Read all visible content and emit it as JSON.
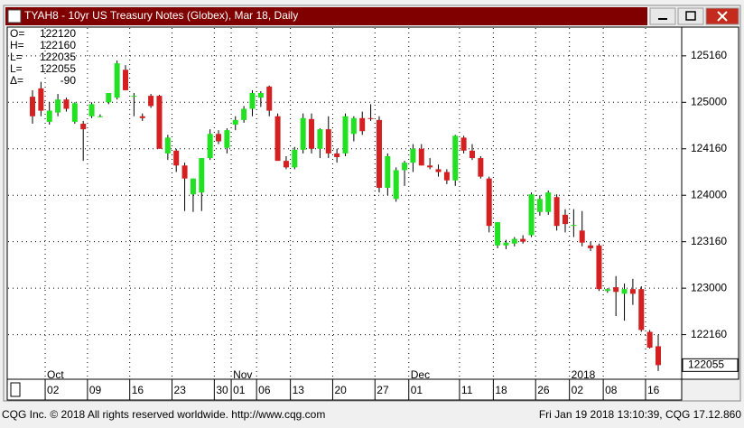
{
  "chart_data": {
    "type": "candlestick",
    "title": "TYAH8 - 10yr US Treasury Notes (Globex), Mar 18, Daily",
    "readout": [
      {
        "label": "O=",
        "text": "122120"
      },
      {
        "label": "H=",
        "text": "122160"
      },
      {
        "label": "L=",
        "text": "122035"
      },
      {
        "label": "L=",
        "text": "122055"
      },
      {
        "label": "Δ=",
        "text": "-90"
      }
    ],
    "categories": [
      null,
      null,
      "02",
      null,
      null,
      null,
      null,
      "09",
      null,
      null,
      null,
      null,
      "16",
      null,
      null,
      null,
      null,
      "23",
      null,
      null,
      null,
      null,
      "30",
      null,
      "01",
      null,
      null,
      "06",
      null,
      null,
      null,
      "13",
      null,
      null,
      null,
      null,
      "20",
      null,
      null,
      null,
      null,
      "27",
      null,
      null,
      null,
      "01",
      null,
      null,
      null,
      null,
      null,
      "11",
      null,
      null,
      null,
      "18",
      null,
      null,
      null,
      null,
      "26",
      null,
      null,
      null,
      "02",
      null,
      null,
      null,
      "08",
      null,
      null,
      null,
      null,
      "16",
      null
    ],
    "month_labels": [
      {
        "text": "Oct",
        "category": 2
      },
      {
        "text": "Nov",
        "category": 24
      },
      {
        "text": "Dec",
        "category": 45
      },
      {
        "text": "2018",
        "category": 64
      }
    ],
    "open": [
      125.06,
      125.15,
      124.79,
      124.89,
      125.03,
      124.79,
      124.77,
      124.85,
      124.85,
      125.0,
      125.05,
      125.35,
      125.07,
      124.85,
      125.07,
      125.07,
      124.45,
      124.48,
      124.32,
      124.01,
      124.03,
      124.4,
      124.66,
      124.51,
      124.76,
      124.81,
      124.93,
      125.05,
      125.17,
      124.85,
      124.37,
      124.3,
      124.49,
      124.82,
      124.5,
      124.71,
      124.45,
      124.45,
      124.66,
      124.83,
      124.83,
      124.81,
      124.08,
      123.96,
      124.27,
      124.35,
      124.5,
      124.32,
      124.28,
      124.25,
      124.16,
      124.62,
      124.48,
      124.4,
      124.18,
      123.46,
      123.46,
      123.48,
      123.53,
      123.57,
      123.82,
      123.82,
      123.98,
      123.79,
      123.67,
      123.62,
      123.46,
      123.46,
      122.97,
      123.01,
      122.94,
      122.99,
      122.99,
      122.53,
      122.375
    ],
    "high": [
      125.13,
      125.22,
      125.0,
      125.09,
      125.05,
      125.0,
      124.8,
      125.0,
      124.87,
      125.1,
      125.45,
      125.4,
      125.1,
      124.88,
      125.09,
      125.08,
      124.65,
      124.5,
      124.35,
      124.18,
      124.4,
      124.71,
      124.7,
      124.72,
      124.85,
      124.96,
      125.13,
      125.12,
      125.18,
      124.88,
      124.42,
      124.52,
      124.88,
      124.88,
      124.72,
      124.85,
      124.5,
      124.88,
      124.85,
      124.9,
      124.98,
      124.85,
      124.45,
      124.3,
      124.37,
      124.55,
      124.55,
      124.4,
      124.33,
      124.28,
      124.65,
      124.64,
      124.55,
      124.42,
      124.2,
      123.71,
      123.52,
      123.55,
      123.57,
      124.03,
      124.0,
      124.05,
      124.01,
      123.85,
      123.85,
      123.83,
      123.5,
      123.48,
      123.0,
      123.13,
      123.05,
      123.1,
      123.02,
      122.55,
      122.5
    ],
    "low": [
      124.77,
      124.85,
      124.76,
      124.85,
      124.9,
      124.77,
      124.37,
      124.83,
      124.84,
      124.98,
      125.03,
      125.13,
      124.85,
      124.8,
      124.94,
      124.5,
      124.38,
      124.25,
      123.83,
      123.82,
      123.83,
      124.38,
      124.55,
      124.45,
      124.7,
      124.78,
      124.85,
      124.95,
      124.85,
      124.4,
      124.28,
      124.28,
      124.45,
      124.45,
      124.4,
      124.4,
      124.35,
      124.42,
      124.58,
      124.65,
      124.8,
      124.03,
      124.0,
      123.93,
      124.1,
      124.25,
      124.32,
      124.28,
      124.2,
      124.12,
      124.1,
      124.45,
      124.38,
      124.18,
      123.6,
      123.43,
      123.42,
      123.45,
      123.48,
      123.55,
      123.78,
      123.79,
      123.62,
      123.6,
      123.55,
      123.45,
      123.4,
      122.97,
      122.95,
      122.7,
      122.65,
      122.82,
      122.53,
      122.35,
      122.109
    ],
    "close": [
      124.85,
      124.91,
      124.91,
      125.03,
      124.93,
      124.99,
      124.71,
      124.98,
      124.85,
      125.1,
      125.42,
      125.13,
      125.07,
      124.83,
      124.96,
      124.5,
      124.62,
      124.32,
      124.18,
      124.18,
      124.4,
      124.66,
      124.58,
      124.7,
      124.81,
      124.93,
      125.1,
      125.1,
      124.91,
      124.37,
      124.3,
      124.49,
      124.83,
      124.5,
      124.71,
      124.45,
      124.41,
      124.85,
      124.83,
      124.69,
      124.82,
      124.08,
      124.42,
      124.27,
      124.35,
      124.5,
      124.32,
      124.3,
      124.25,
      124.16,
      124.64,
      124.48,
      124.4,
      124.2,
      123.67,
      123.71,
      123.49,
      123.53,
      123.5,
      124.01,
      123.96,
      124.03,
      123.67,
      123.69,
      123.68,
      123.49,
      123.43,
      122.99,
      122.99,
      122.96,
      122.99,
      122.94,
      122.55,
      122.36,
      122.172
    ],
    "up_color": "#22e022",
    "down_color": "#d42020",
    "ylim": [
      122.02,
      125.79
    ],
    "yticks": [
      {
        "value": 125.5,
        "label": "125160"
      },
      {
        "value": 125,
        "label": "125000"
      },
      {
        "value": 124.5,
        "label": "124160"
      },
      {
        "value": 124,
        "label": "124000"
      },
      {
        "value": 123.5,
        "label": "123160"
      },
      {
        "value": 123,
        "label": "123000"
      },
      {
        "value": 122.5,
        "label": "122160"
      }
    ],
    "last": {
      "value": 122.172,
      "label": "122055"
    },
    "grid": true,
    "footer_left": "CQG Inc. © 2018 All rights reserved worldwide. http://www.cqg.com",
    "footer_right": "Fri Jan 19 2018 13:10:39, CQG 17.12.860"
  }
}
